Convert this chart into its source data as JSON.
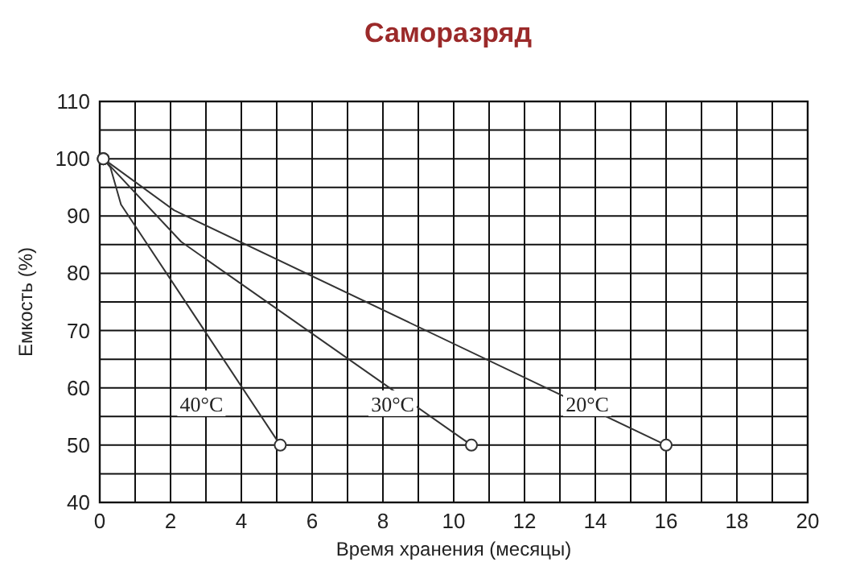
{
  "chart_data": {
    "type": "line",
    "title": "Саморазряд",
    "xlabel": "Время хранения (месяцы)",
    "ylabel": "Емкость (%)",
    "xlim": [
      0,
      20
    ],
    "ylim": [
      40,
      110
    ],
    "xticks": [
      0,
      {
        "value": 1,
        "label": null
      },
      2,
      {
        "value": 3,
        "label": null
      },
      4,
      {
        "value": 5,
        "label": null
      },
      6,
      {
        "value": 7,
        "label": null
      },
      8,
      {
        "value": 9,
        "label": null
      },
      10,
      {
        "value": 11,
        "label": null
      },
      12,
      {
        "value": 13,
        "label": null
      },
      14,
      {
        "value": 15,
        "label": null
      },
      16,
      {
        "value": 17,
        "label": null
      },
      18,
      {
        "value": 19,
        "label": null
      },
      20
    ],
    "yticks": [
      40,
      {
        "value": 45,
        "label": null
      },
      50,
      {
        "value": 55,
        "label": null
      },
      60,
      {
        "value": 65,
        "label": null
      },
      70,
      {
        "value": 75,
        "label": null
      },
      80,
      {
        "value": 85,
        "label": null
      },
      90,
      {
        "value": 95,
        "label": null
      },
      100,
      {
        "value": 105,
        "label": null
      },
      110
    ],
    "grid": true,
    "marker": "circle",
    "line_style": "solid",
    "series": [
      {
        "name": "40°C",
        "color": "#333333",
        "x": [
          0.1,
          0.3,
          0.6,
          5.1
        ],
        "values": [
          100,
          98.5,
          92,
          50
        ]
      },
      {
        "name": "30°C",
        "color": "#333333",
        "x": [
          0.1,
          2.3,
          10.5
        ],
        "values": [
          100,
          85.5,
          50
        ]
      },
      {
        "name": "20°C",
        "color": "#333333",
        "x": [
          0.1,
          2.1,
          16
        ],
        "values": [
          100,
          91,
          50
        ]
      }
    ]
  }
}
